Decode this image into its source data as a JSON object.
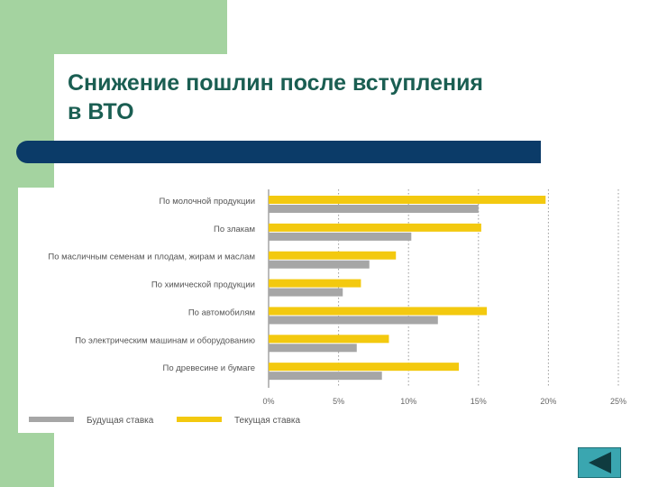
{
  "slide": {
    "title_line1": "Снижение пошлин после вступления",
    "title_line2": "в ВТО"
  },
  "colors": {
    "accent_green": "#a4d3a0",
    "title_color": "#1a5e52",
    "divider_blue": "#0b3b68",
    "future_rate": "#a6a6a6",
    "current_rate": "#f3c90f",
    "nav_button": "#3aa6b0"
  },
  "nav": {
    "icon": "triangle-left-icon"
  },
  "chart_data": {
    "type": "bar",
    "orientation": "horizontal",
    "categories": [
      "По молочной продукции",
      "По злакам",
      "По масличным семенам и плодам, жирам и маслам",
      "По химической продукции",
      "По автомобилям",
      "По электрическим машинам и оборудованию",
      "По древесине и бумаге"
    ],
    "series": [
      {
        "name": "Текущая ставка",
        "values": [
          19.8,
          15.2,
          9.1,
          6.6,
          15.6,
          8.6,
          13.6
        ]
      },
      {
        "name": "Будущая ставка",
        "values": [
          15.0,
          10.2,
          7.2,
          5.3,
          12.1,
          6.3,
          8.1
        ]
      }
    ],
    "xlim": [
      0,
      25
    ],
    "xticks": [
      0,
      5,
      10,
      15,
      20,
      25
    ],
    "xtick_labels": [
      "0%",
      "5%",
      "10%",
      "15%",
      "20%",
      "25%"
    ],
    "grid": "vertical-dotted",
    "legend": [
      "Будущая ставка",
      "Текущая ставка"
    ],
    "legend_position": "bottom-left"
  }
}
